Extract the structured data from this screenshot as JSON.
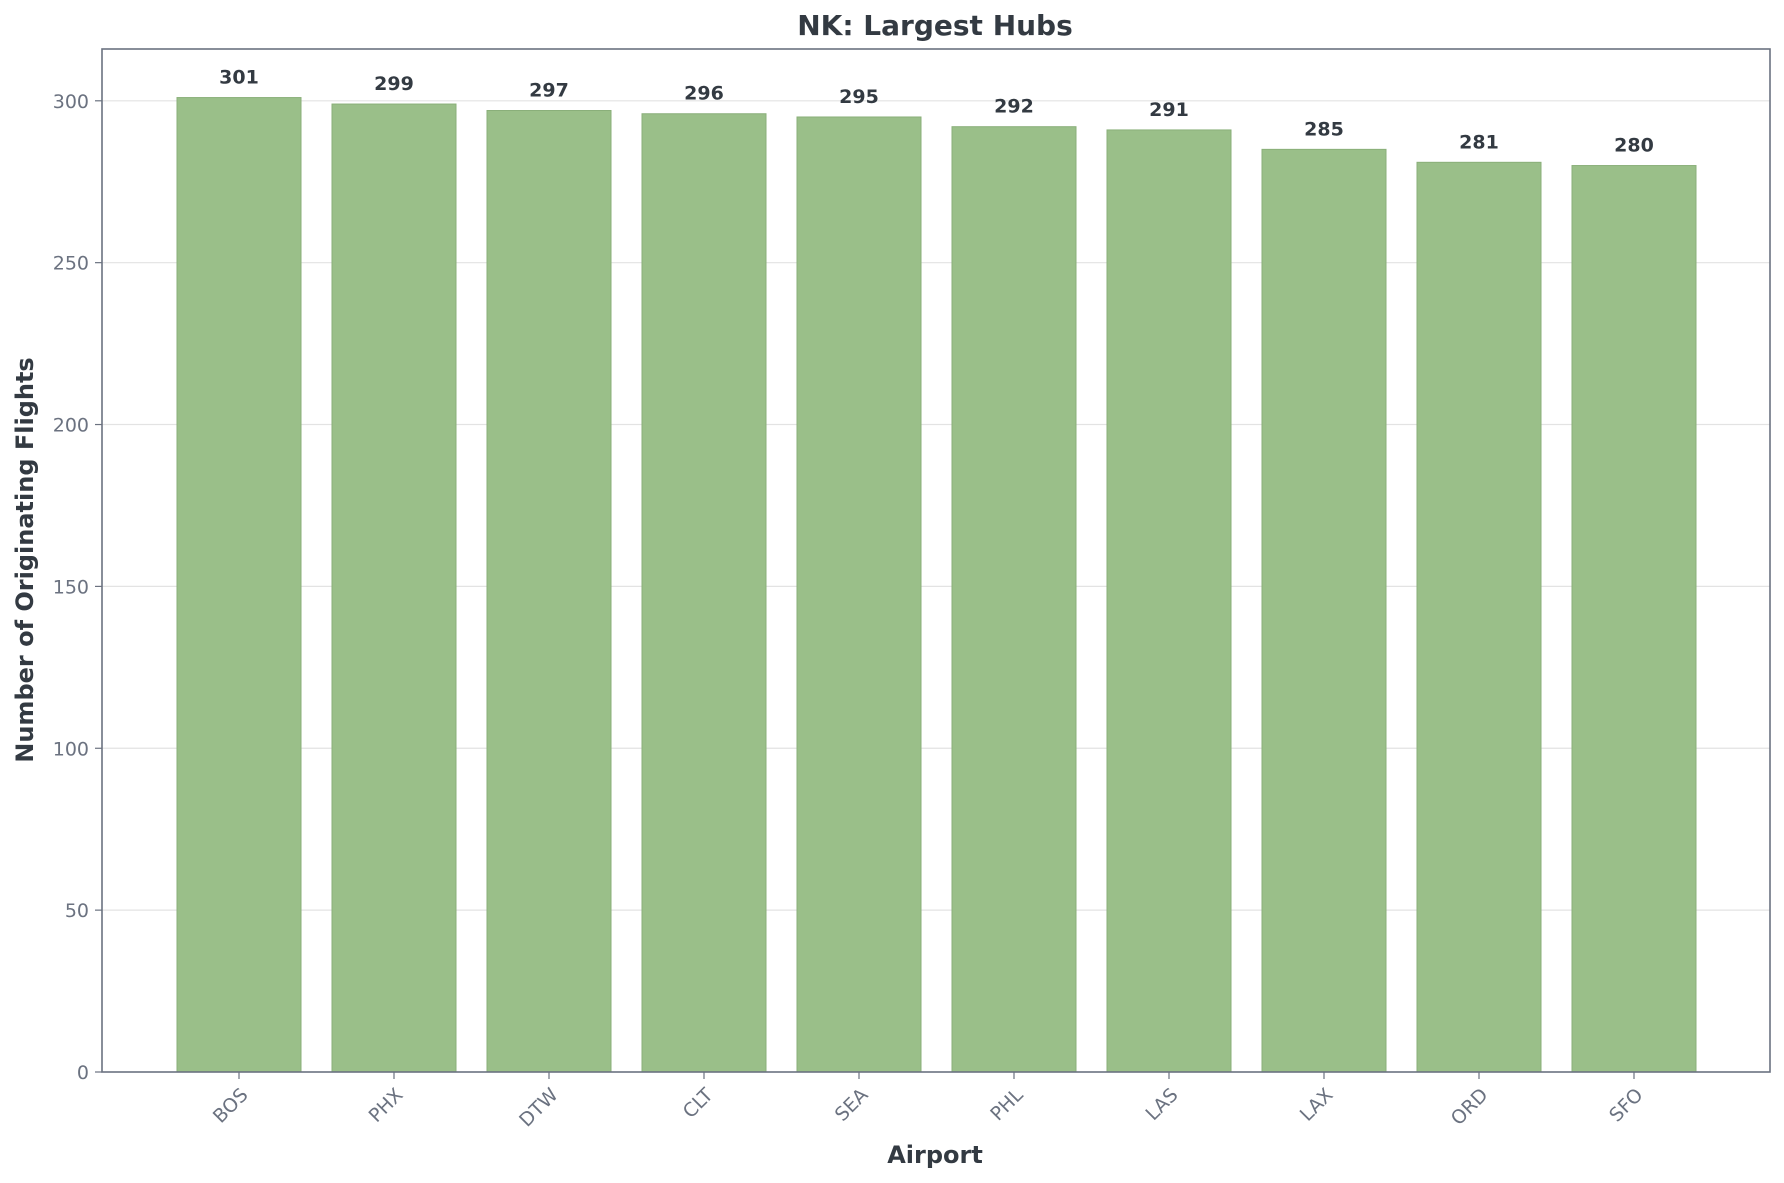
{
  "chart_data": {
    "type": "bar",
    "title": "NK: Largest Hubs",
    "xlabel": "Airport",
    "ylabel": "Number of Originating Flights",
    "categories": [
      "BOS",
      "PHX",
      "DTW",
      "CLT",
      "SEA",
      "PHL",
      "LAS",
      "LAX",
      "ORD",
      "SFO"
    ],
    "values": [
      301,
      299,
      297,
      296,
      295,
      292,
      291,
      285,
      281,
      280
    ],
    "ylim": [
      0,
      316
    ],
    "yticks": [
      0,
      50,
      100,
      150,
      200,
      250,
      300
    ],
    "grid": "horizontal",
    "legend": "none",
    "bar_color": "#9abf89",
    "bar_edge_color": "#8aaf79",
    "text_color": "#333a42",
    "tick_color": "#6b7280"
  }
}
